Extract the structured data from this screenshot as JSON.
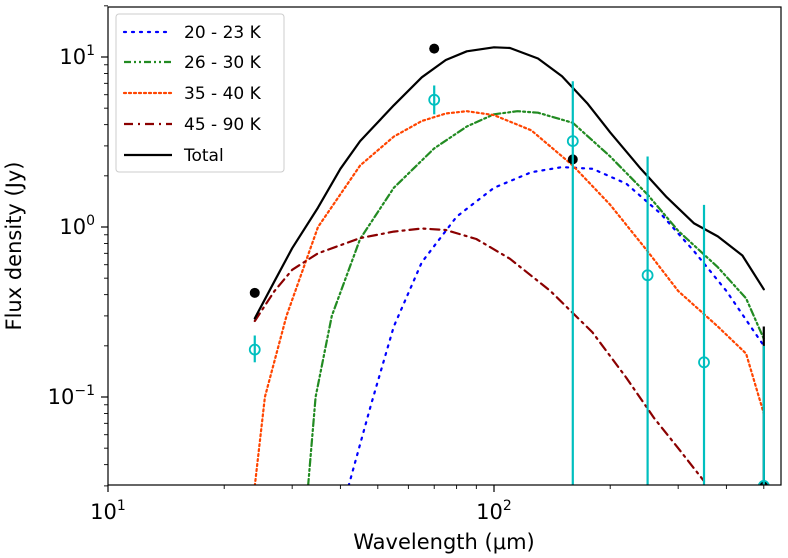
{
  "chart_data": {
    "type": "line",
    "xscale": "log",
    "yscale": "log",
    "xlabel": "Wavelength (μm)",
    "ylabel": "Flux density (Jy)",
    "xlim": [
      10,
      580
    ],
    "ylim": [
      0.03,
      20
    ],
    "x_ticks": [
      {
        "value": 10,
        "base": "10",
        "exp": "1"
      },
      {
        "value": 100,
        "base": "10",
        "exp": "2"
      }
    ],
    "y_ticks": [
      {
        "value": 10,
        "base": "10",
        "exp": "1"
      },
      {
        "value": 1,
        "base": "10",
        "exp": "0"
      },
      {
        "value": 0.1,
        "base": "10",
        "exp": "−1"
      }
    ],
    "series": [
      {
        "name": "20 - 23 K",
        "color": "#0000ff",
        "style": "dotted",
        "points": [
          [
            42,
            0.03
          ],
          [
            48,
            0.09
          ],
          [
            55,
            0.26
          ],
          [
            65,
            0.62
          ],
          [
            80,
            1.15
          ],
          [
            100,
            1.7
          ],
          [
            125,
            2.1
          ],
          [
            150,
            2.25
          ],
          [
            180,
            2.2
          ],
          [
            220,
            1.8
          ],
          [
            270,
            1.2
          ],
          [
            330,
            0.72
          ],
          [
            400,
            0.42
          ],
          [
            500,
            0.2
          ]
        ]
      },
      {
        "name": "26 - 30 K",
        "color": "#228b22",
        "style": "dashdotdot",
        "points": [
          [
            33,
            0.03
          ],
          [
            34.5,
            0.1
          ],
          [
            38,
            0.3
          ],
          [
            45,
            0.85
          ],
          [
            55,
            1.7
          ],
          [
            70,
            2.9
          ],
          [
            85,
            3.9
          ],
          [
            100,
            4.6
          ],
          [
            115,
            4.8
          ],
          [
            130,
            4.7
          ],
          [
            160,
            4.1
          ],
          [
            200,
            2.6
          ],
          [
            250,
            1.55
          ],
          [
            300,
            0.95
          ],
          [
            380,
            0.58
          ],
          [
            450,
            0.38
          ],
          [
            500,
            0.22
          ]
        ]
      },
      {
        "name": "35 - 40 K",
        "color": "#ff4500",
        "style": "dotted",
        "points": [
          [
            24,
            0.03
          ],
          [
            25.5,
            0.1
          ],
          [
            29,
            0.3
          ],
          [
            35,
            1.0
          ],
          [
            45,
            2.3
          ],
          [
            55,
            3.4
          ],
          [
            65,
            4.2
          ],
          [
            75,
            4.65
          ],
          [
            85,
            4.8
          ],
          [
            100,
            4.55
          ],
          [
            125,
            3.7
          ],
          [
            160,
            2.3
          ],
          [
            200,
            1.35
          ],
          [
            250,
            0.72
          ],
          [
            300,
            0.42
          ],
          [
            380,
            0.26
          ],
          [
            450,
            0.18
          ],
          [
            500,
            0.08
          ]
        ]
      },
      {
        "name": "45 - 90 K",
        "color": "#8b0000",
        "style": "dashdot",
        "points": [
          [
            24,
            0.28
          ],
          [
            27,
            0.42
          ],
          [
            30,
            0.56
          ],
          [
            35,
            0.7
          ],
          [
            45,
            0.86
          ],
          [
            55,
            0.94
          ],
          [
            65,
            0.98
          ],
          [
            75,
            0.96
          ],
          [
            90,
            0.85
          ],
          [
            110,
            0.65
          ],
          [
            140,
            0.42
          ],
          [
            180,
            0.24
          ],
          [
            220,
            0.13
          ],
          [
            260,
            0.075
          ],
          [
            300,
            0.05
          ],
          [
            350,
            0.032
          ]
        ]
      },
      {
        "name": "Total",
        "color": "#000000",
        "style": "solid",
        "points": [
          [
            24,
            0.29
          ],
          [
            27,
            0.48
          ],
          [
            30,
            0.75
          ],
          [
            35,
            1.3
          ],
          [
            40,
            2.2
          ],
          [
            45,
            3.2
          ],
          [
            55,
            5.2
          ],
          [
            65,
            7.6
          ],
          [
            75,
            9.6
          ],
          [
            85,
            10.8
          ],
          [
            100,
            11.4
          ],
          [
            110,
            11.3
          ],
          [
            130,
            9.8
          ],
          [
            150,
            7.7
          ],
          [
            175,
            5.3
          ],
          [
            200,
            3.6
          ],
          [
            240,
            2.2
          ],
          [
            280,
            1.5
          ],
          [
            330,
            1.05
          ],
          [
            380,
            0.88
          ],
          [
            440,
            0.68
          ],
          [
            500,
            0.43
          ]
        ]
      }
    ],
    "observations": [
      {
        "color": "#000000",
        "marker": "filled-circle",
        "points": [
          {
            "x": 24,
            "y": 0.41,
            "y_low": 0.39,
            "y_high": 0.43
          },
          {
            "x": 70,
            "y": 11.2,
            "y_low": 10.5,
            "y_high": 11.9
          },
          {
            "x": 160,
            "y": 2.5,
            "y_low": 2.4,
            "y_high": 2.6
          },
          {
            "x": 500,
            "y": 0.03,
            "y_low": 0.03,
            "y_high": 0.26
          }
        ]
      },
      {
        "color": "#00bfbf",
        "marker": "open-circle",
        "points": [
          {
            "x": 24,
            "y": 0.19,
            "y_low": 0.16,
            "y_high": 0.23
          },
          {
            "x": 70,
            "y": 5.6,
            "y_low": 4.6,
            "y_high": 6.8
          },
          {
            "x": 160,
            "y": 3.2,
            "y_low": 0.03,
            "y_high": 7.2
          },
          {
            "x": 250,
            "y": 0.52,
            "y_low": 0.03,
            "y_high": 2.6
          },
          {
            "x": 350,
            "y": 0.16,
            "y_low": 0.03,
            "y_high": 1.35
          },
          {
            "x": 500,
            "y": 0.03,
            "y_low": 0.03,
            "y_high": 0.2
          }
        ]
      }
    ],
    "legend": {
      "position": "top-left"
    }
  }
}
